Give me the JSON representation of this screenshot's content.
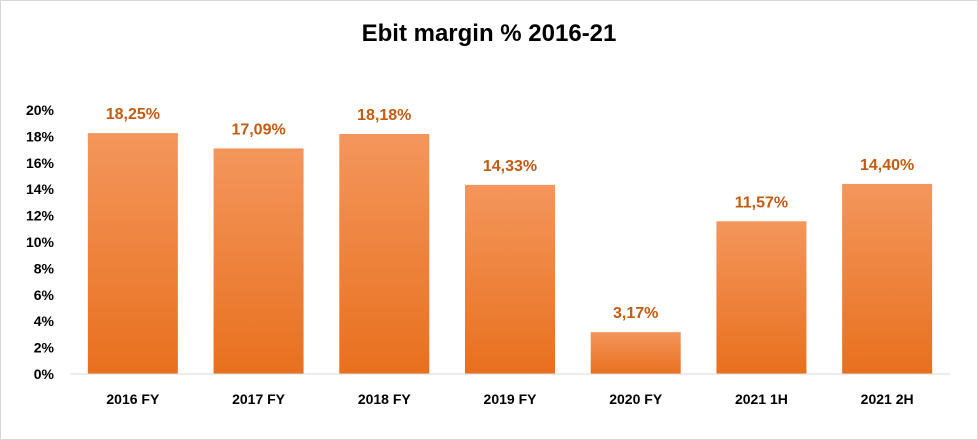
{
  "chart_data": {
    "type": "bar",
    "title": "Ebit margin % 2016-21",
    "xlabel": "",
    "ylabel": "",
    "categories": [
      "2016 FY",
      "2017 FY",
      "2018 FY",
      "2019 FY",
      "2020 FY",
      "2021 1H",
      "2021 2H"
    ],
    "values": [
      18.25,
      17.09,
      18.18,
      14.33,
      3.17,
      11.57,
      14.4
    ],
    "data_labels": [
      "18,25%",
      "17,09%",
      "18,18%",
      "14,33%",
      "3,17%",
      "11,57%",
      "14,40%"
    ],
    "ylim": [
      0,
      20
    ],
    "yticks": [
      0,
      2,
      4,
      6,
      8,
      10,
      12,
      14,
      16,
      18,
      20
    ],
    "ytick_labels": [
      "0%",
      "2%",
      "4%",
      "6%",
      "8%",
      "10%",
      "12%",
      "14%",
      "16%",
      "18%",
      "20%"
    ],
    "grid": false,
    "legend": "none",
    "colors": {
      "bar_top": "#f4965c",
      "bar_bottom": "#e8701e",
      "data_label": "#c55a11",
      "axis": "#d9d9d9"
    }
  }
}
